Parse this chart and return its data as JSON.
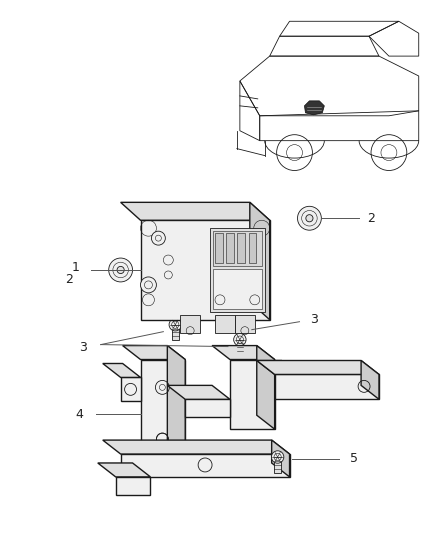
{
  "background_color": "#ffffff",
  "fig_width": 4.38,
  "fig_height": 5.33,
  "dpi": 100,
  "line_color": "#1a1a1a",
  "line_color_light": "#555555",
  "lw_main": 1.0,
  "lw_thin": 0.6,
  "lw_detail": 0.4,
  "car_color": "#1a1a1a",
  "fill_light": "#f0f0f0",
  "fill_mid": "#e0e0e0",
  "fill_dark": "#cccccc"
}
